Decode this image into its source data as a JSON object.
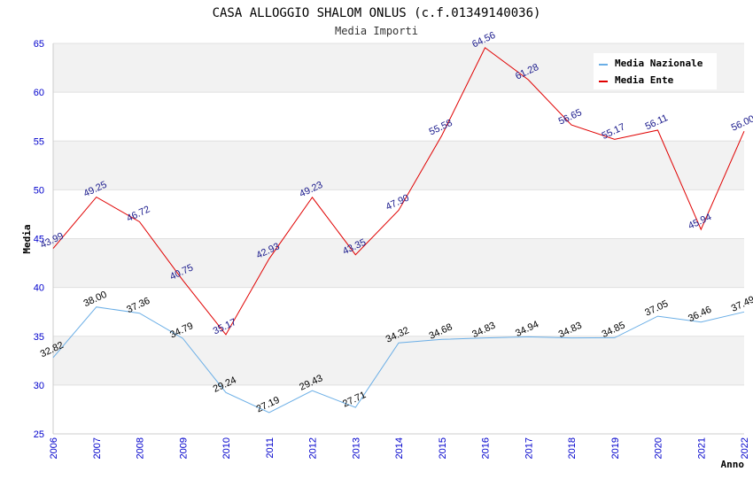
{
  "chart_data": {
    "type": "line",
    "title": "CASA ALLOGGIO SHALOM ONLUS (c.f.01349140036)",
    "subtitle": "Media Importi",
    "xlabel": "Anno",
    "ylabel": "Media",
    "ylim": [
      25,
      65
    ],
    "yticks": [
      "25",
      "30",
      "35",
      "40",
      "45",
      "50",
      "55",
      "60",
      "65"
    ],
    "categories": [
      "2006",
      "2007",
      "2008",
      "2009",
      "2010",
      "2011",
      "2012",
      "2013",
      "2014",
      "2015",
      "2016",
      "2017",
      "2018",
      "2019",
      "2020",
      "2021",
      "2022"
    ],
    "grid": true,
    "legend_position": "top-right",
    "series": [
      {
        "name": "Media Nazionale",
        "color": "#6aaee6",
        "values": [
          32.82,
          38.0,
          37.36,
          34.79,
          29.24,
          27.19,
          29.43,
          27.71,
          34.32,
          34.68,
          34.83,
          34.94,
          34.83,
          34.85,
          37.05,
          36.46,
          37.49
        ],
        "labels": [
          "32.82",
          "38.00",
          "37.36",
          "34.79",
          "29.24",
          "27.19",
          "29.43",
          "27.71",
          "34.32",
          "34.68",
          "34.83",
          "34.94",
          "34.83",
          "34.85",
          "37.05",
          "36.46",
          "37.49"
        ]
      },
      {
        "name": "Media Ente",
        "color": "#e00000",
        "values": [
          43.99,
          49.25,
          46.72,
          40.75,
          35.17,
          42.93,
          49.23,
          43.35,
          47.9,
          55.58,
          64.56,
          61.28,
          56.65,
          55.17,
          56.11,
          45.94,
          56.0
        ],
        "labels": [
          "43.99",
          "49.25",
          "46.72",
          "40.75",
          "35.17",
          "42.93",
          "49.23",
          "43.35",
          "47.90",
          "55.58",
          "64.56",
          "61.28",
          "56.65",
          "55.17",
          "56.11",
          "45.94",
          "56.00"
        ]
      }
    ]
  }
}
